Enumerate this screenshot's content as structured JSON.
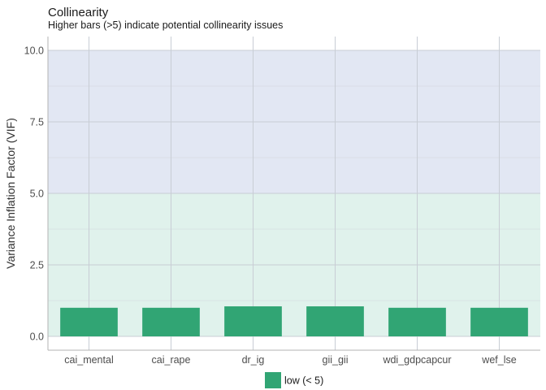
{
  "chart_data": {
    "type": "bar",
    "title": "Collinearity",
    "subtitle": "Higher bars (>5) indicate potential collinearity issues",
    "xlabel": "",
    "ylabel": "Variance Inflation Factor (VIF)",
    "categories": [
      "cai_mental",
      "cai_rape",
      "dr_ig",
      "gii_gii",
      "wdi_gdpcapcur",
      "wef_lse"
    ],
    "values": [
      1.0,
      1.0,
      1.05,
      1.05,
      1.0,
      1.0
    ],
    "ylim": [
      -0.4,
      10.5
    ],
    "yticks": [
      0,
      2.5,
      5,
      7.5,
      10
    ],
    "ytick_labels": [
      "0.0",
      "2.5",
      "5.0",
      "7.5",
      "10.0"
    ],
    "bands": [
      {
        "from": 0,
        "to": 5,
        "color": "#e0f2ec"
      },
      {
        "from": 5,
        "to": 10,
        "color": "#e2e7f3"
      }
    ],
    "bar_color": "#31a574",
    "grid": true,
    "legend": {
      "position": "bottom",
      "entries": [
        {
          "label": "low (< 5)",
          "color": "#31a574"
        }
      ]
    }
  }
}
